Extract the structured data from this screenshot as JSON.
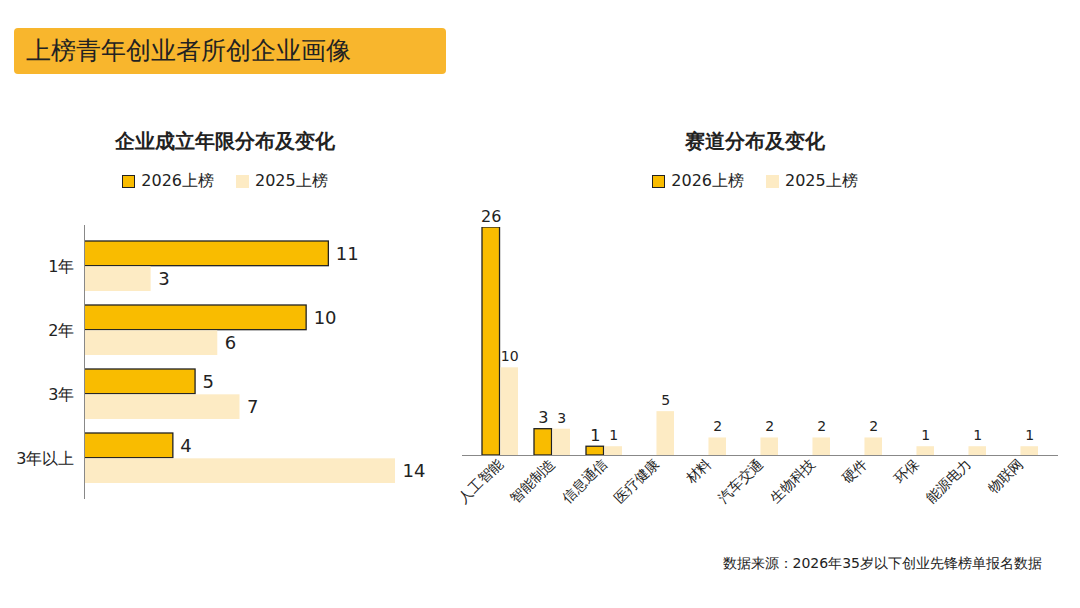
{
  "header": {
    "title": "上榜青年创业者所创企业画像"
  },
  "chart_data": [
    {
      "type": "bar",
      "title": "企业成立年限分布及变化",
      "orientation": "horizontal",
      "categories": [
        "1年",
        "2年",
        "3年",
        "3年以上"
      ],
      "series": [
        {
          "name": "2026上榜",
          "color": "#F9BC00",
          "values": [
            11,
            10,
            5,
            4
          ]
        },
        {
          "name": "2025上榜",
          "color": "#FDEBC4",
          "values": [
            3,
            6,
            7,
            14
          ]
        }
      ],
      "xlim": [
        0,
        14
      ],
      "data_labels": true,
      "tick_labels": "y",
      "legend": "top",
      "grid": false
    },
    {
      "type": "bar",
      "title": "赛道分布及变化",
      "categories": [
        "人工智能",
        "智能制造",
        "信息通信",
        "医疗健康",
        "材料",
        "汽车交通",
        "生物科技",
        "硬件",
        "环保",
        "能源电力",
        "物联网"
      ],
      "series": [
        {
          "name": "2026上榜",
          "color": "#F9BC00",
          "values": [
            26,
            3,
            1,
            null,
            null,
            null,
            null,
            null,
            null,
            null,
            null
          ]
        },
        {
          "name": "2025上榜",
          "color": "#FDEBC4",
          "values": [
            10,
            3,
            1,
            5,
            2,
            2,
            2,
            2,
            1,
            1,
            1
          ]
        }
      ],
      "ylim": [
        0,
        26
      ],
      "data_labels": true,
      "tick_labels": "x",
      "legend": "top",
      "grid": false
    }
  ],
  "source": "数据来源：2026年35岁以下创业先锋榜单报名数据"
}
